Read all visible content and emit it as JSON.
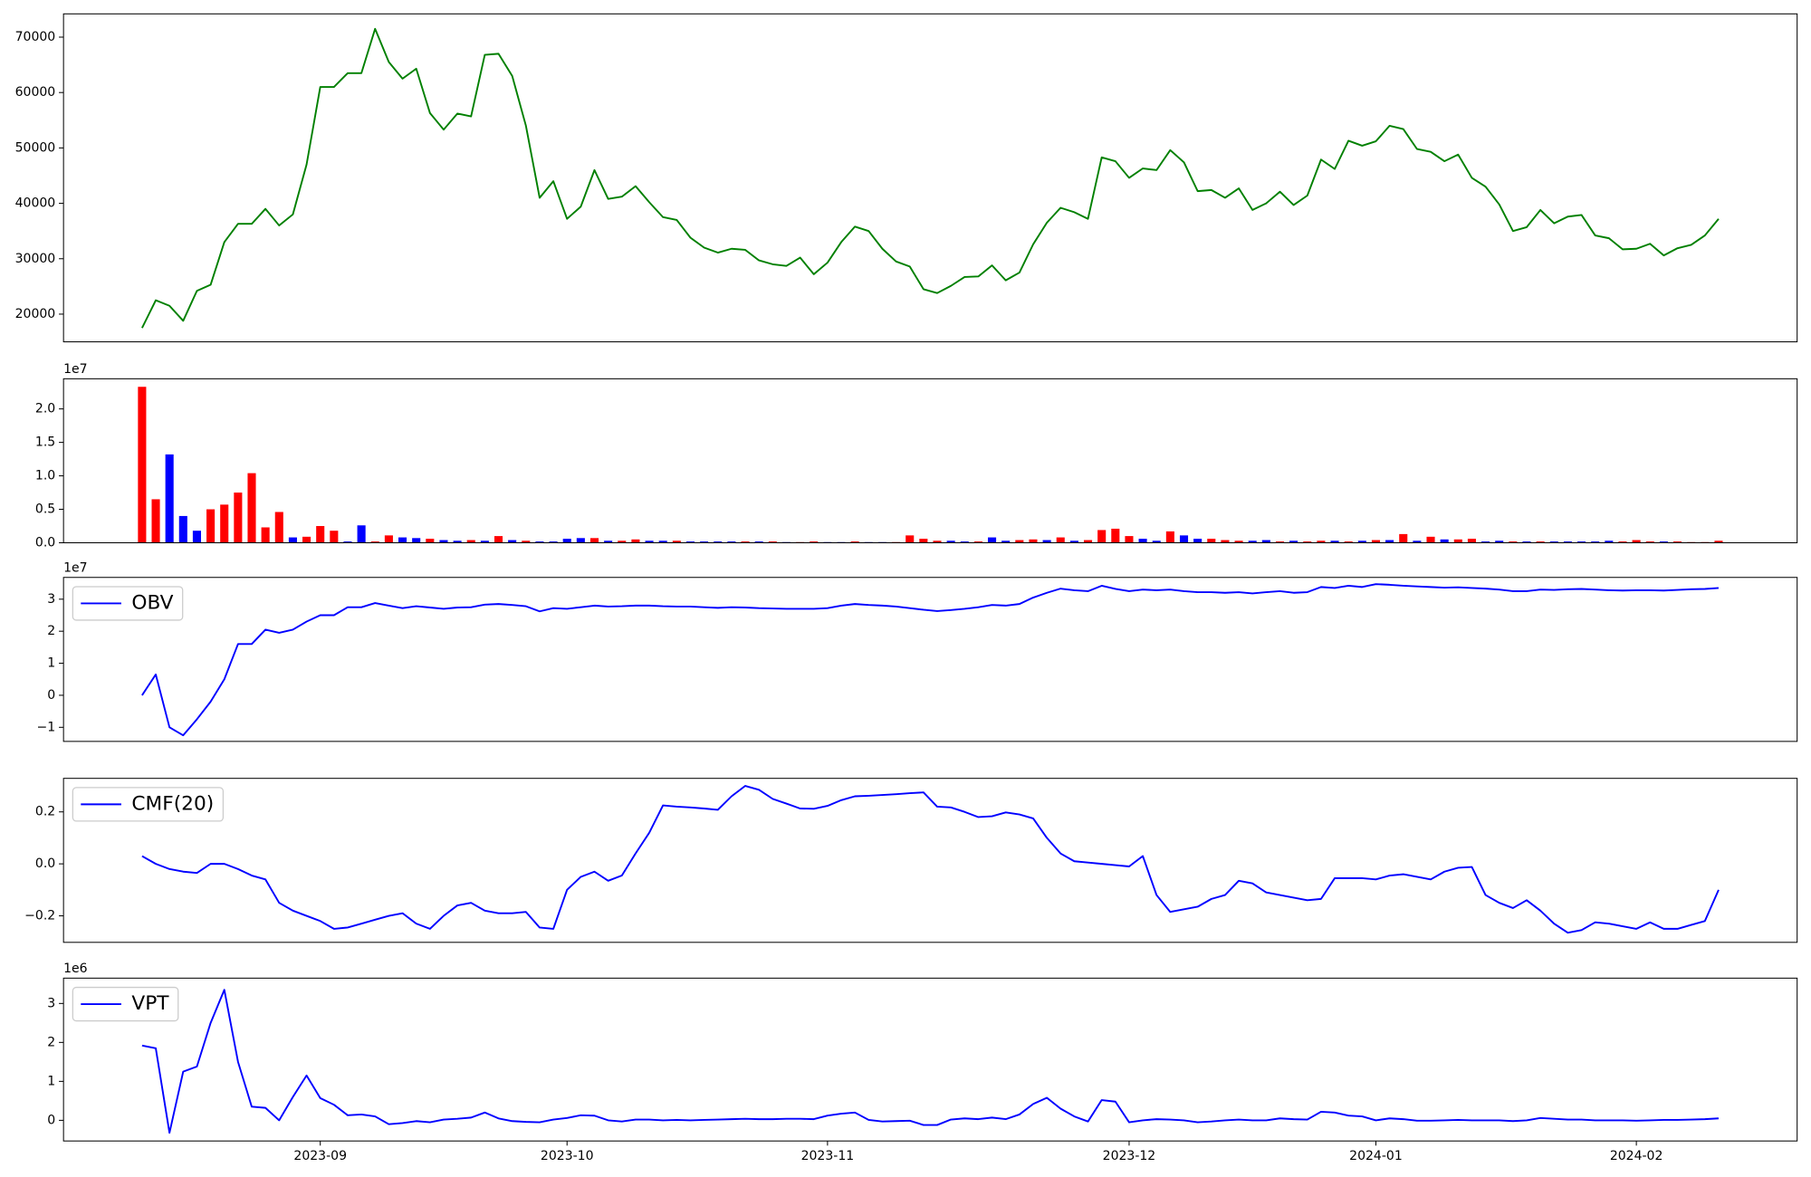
{
  "chart_data": [
    {
      "type": "line",
      "series": [
        {
          "color": "green",
          "values": [
            17500,
            22500,
            21500,
            18800,
            24200,
            25300,
            33000,
            36300,
            36300,
            39000,
            36000,
            38000,
            47000,
            61000,
            61000,
            63500,
            63500,
            71500,
            65500,
            62500,
            64300,
            56300,
            53300,
            56200,
            55700,
            66800,
            67000,
            63000,
            54000,
            41000,
            44000,
            37200,
            39400,
            46000,
            40800,
            41200,
            43100,
            40200,
            37500,
            37000,
            33800,
            32000,
            31100,
            31800,
            31600,
            29700,
            29000,
            28700,
            30200,
            27200,
            29300,
            33000,
            35800,
            35000,
            31800,
            29500,
            28600,
            24500,
            23800,
            25100,
            26700,
            26800,
            28800,
            26100,
            27500,
            32600,
            36500,
            39200,
            38400,
            37200,
            48300,
            47600,
            44600,
            46300,
            46000,
            49600,
            47400,
            42200,
            42400,
            41000,
            42700,
            38800,
            40000,
            42100,
            39700,
            41400,
            47900,
            46200,
            51300,
            50400,
            51200,
            54000,
            53400,
            49800,
            49300,
            47600,
            48800,
            44600,
            43000,
            39800,
            35000,
            35700,
            38800,
            36400,
            37600,
            37900,
            34200,
            33700,
            31700,
            31800,
            32700,
            30600,
            31900,
            32500,
            34200,
            37200
          ]
        }
      ],
      "ylim": [
        15000,
        74200
      ],
      "yticks": [
        20000,
        30000,
        40000,
        50000,
        60000,
        70000
      ]
    },
    {
      "type": "bar",
      "offset_label": "1e7",
      "values": [
        2.33,
        0.65,
        1.32,
        0.4,
        0.18,
        0.5,
        0.57,
        0.75,
        1.04,
        0.23,
        0.46,
        0.08,
        0.09,
        0.25,
        0.18,
        0.02,
        0.26,
        0.02,
        0.11,
        0.08,
        0.07,
        0.06,
        0.04,
        0.03,
        0.04,
        0.03,
        0.1,
        0.04,
        0.03,
        0.02,
        0.02,
        0.06,
        0.07,
        0.07,
        0.03,
        0.03,
        0.05,
        0.03,
        0.03,
        0.03,
        0.02,
        0.02,
        0.02,
        0.02,
        0.02,
        0.02,
        0.02,
        0.01,
        0.01,
        0.02,
        0.01,
        0.01,
        0.02,
        0.01,
        0.01,
        0.01,
        0.11,
        0.06,
        0.03,
        0.03,
        0.02,
        0.02,
        0.08,
        0.03,
        0.04,
        0.05,
        0.04,
        0.08,
        0.03,
        0.04,
        0.19,
        0.21,
        0.1,
        0.06,
        0.03,
        0.17,
        0.11,
        0.06,
        0.06,
        0.04,
        0.03,
        0.03,
        0.04,
        0.02,
        0.03,
        0.02,
        0.03,
        0.03,
        0.02,
        0.03,
        0.04,
        0.04,
        0.13,
        0.03,
        0.09,
        0.05,
        0.05,
        0.06,
        0.02,
        0.03,
        0.02,
        0.02,
        0.02,
        0.02,
        0.02,
        0.02,
        0.02,
        0.03,
        0.02,
        0.04,
        0.02,
        0.02,
        0.02,
        0.01,
        0.01,
        0.03
      ],
      "colors": [
        "red",
        "red",
        "blue",
        "blue",
        "blue",
        "red",
        "red",
        "red",
        "red",
        "red",
        "red",
        "blue",
        "red",
        "red",
        "red",
        "blue",
        "blue",
        "red",
        "red",
        "blue",
        "blue",
        "red",
        "blue",
        "blue",
        "red",
        "blue",
        "red",
        "blue",
        "red",
        "blue",
        "blue",
        "blue",
        "blue",
        "red",
        "blue",
        "red",
        "red",
        "blue",
        "blue",
        "red",
        "blue",
        "blue",
        "blue",
        "blue",
        "red",
        "blue",
        "red",
        "blue",
        "red",
        "red",
        "blue",
        "blue",
        "red",
        "blue",
        "blue",
        "red",
        "red",
        "red",
        "red",
        "blue",
        "blue",
        "red",
        "blue",
        "blue",
        "red",
        "red",
        "blue",
        "red",
        "blue",
        "red",
        "red",
        "red",
        "red",
        "blue",
        "blue",
        "red",
        "blue",
        "blue",
        "red",
        "red",
        "red",
        "blue",
        "blue",
        "red",
        "blue",
        "red",
        "red",
        "blue",
        "red",
        "blue",
        "red",
        "blue",
        "red",
        "blue",
        "red",
        "blue",
        "red",
        "red",
        "blue",
        "blue",
        "red",
        "blue",
        "red",
        "blue",
        "blue",
        "blue",
        "blue",
        "blue",
        "red",
        "red",
        "red",
        "blue",
        "red",
        "red",
        "red",
        "red"
      ],
      "ylim": [
        0,
        2.45
      ],
      "yticks": [
        {
          "value": 0,
          "label": "0.0"
        },
        {
          "value": 0.5,
          "label": "0.5"
        },
        {
          "value": 1,
          "label": "1.0"
        },
        {
          "value": 1.5,
          "label": "1.5"
        },
        {
          "value": 2,
          "label": "2.0"
        }
      ]
    },
    {
      "type": "line",
      "offset_label": "1e7",
      "legend": "upper left",
      "series": [
        {
          "name": "OBV",
          "color": "blue",
          "values": [
            0,
            0.65,
            -1.0,
            -1.25,
            -0.75,
            -0.2,
            0.5,
            1.6,
            1.6,
            2.05,
            1.95,
            2.05,
            2.3,
            2.5,
            2.5,
            2.75,
            2.75,
            2.88,
            2.8,
            2.72,
            2.78,
            2.74,
            2.7,
            2.74,
            2.75,
            2.83,
            2.85,
            2.82,
            2.78,
            2.62,
            2.72,
            2.7,
            2.75,
            2.8,
            2.77,
            2.78,
            2.8,
            2.8,
            2.78,
            2.77,
            2.77,
            2.75,
            2.73,
            2.75,
            2.74,
            2.72,
            2.71,
            2.7,
            2.7,
            2.7,
            2.72,
            2.8,
            2.85,
            2.82,
            2.8,
            2.77,
            2.72,
            2.67,
            2.63,
            2.66,
            2.7,
            2.75,
            2.82,
            2.8,
            2.85,
            3.05,
            3.2,
            3.33,
            3.28,
            3.25,
            3.42,
            3.32,
            3.25,
            3.3,
            3.28,
            3.3,
            3.25,
            3.22,
            3.22,
            3.2,
            3.22,
            3.18,
            3.22,
            3.25,
            3.2,
            3.22,
            3.38,
            3.35,
            3.42,
            3.38,
            3.47,
            3.45,
            3.42,
            3.4,
            3.38,
            3.36,
            3.37,
            3.35,
            3.33,
            3.3,
            3.25,
            3.25,
            3.3,
            3.29,
            3.31,
            3.32,
            3.3,
            3.28,
            3.27,
            3.28,
            3.28,
            3.27,
            3.29,
            3.31,
            3.32,
            3.35
          ]
        }
      ],
      "ylim": [
        -1.44,
        3.68
      ],
      "yticks": [
        {
          "value": -1,
          "label": "−1"
        },
        0,
        1,
        2,
        3
      ]
    },
    {
      "type": "line",
      "legend": "upper left",
      "series": [
        {
          "name": "CMF(20)",
          "color": "blue",
          "values": [
            0.03,
            0.0,
            -0.02,
            -0.03,
            -0.035,
            0.0,
            0.0,
            -0.02,
            -0.045,
            -0.06,
            -0.15,
            -0.18,
            -0.2,
            -0.22,
            -0.25,
            -0.245,
            -0.23,
            -0.215,
            -0.2,
            -0.19,
            -0.23,
            -0.25,
            -0.2,
            -0.16,
            -0.15,
            -0.18,
            -0.19,
            -0.19,
            -0.185,
            -0.245,
            -0.25,
            -0.1,
            -0.05,
            -0.03,
            -0.065,
            -0.045,
            0.04,
            0.12,
            0.225,
            0.22,
            0.217,
            0.213,
            0.208,
            0.26,
            0.3,
            0.285,
            0.25,
            0.232,
            0.213,
            0.212,
            0.223,
            0.245,
            0.26,
            0.262,
            0.265,
            0.268,
            0.272,
            0.275,
            0.22,
            0.217,
            0.2,
            0.18,
            0.183,
            0.198,
            0.19,
            0.175,
            0.1,
            0.04,
            0.01,
            0.005,
            0.0,
            -0.005,
            -0.01,
            0.03,
            -0.12,
            -0.185,
            -0.175,
            -0.165,
            -0.135,
            -0.12,
            -0.065,
            -0.075,
            -0.11,
            -0.12,
            -0.13,
            -0.14,
            -0.135,
            -0.055,
            -0.055,
            -0.055,
            -0.06,
            -0.045,
            -0.04,
            -0.05,
            -0.06,
            -0.03,
            -0.015,
            -0.012,
            -0.12,
            -0.15,
            -0.17,
            -0.14,
            -0.18,
            -0.23,
            -0.265,
            -0.255,
            -0.225,
            -0.23,
            -0.24,
            -0.25,
            -0.225,
            -0.25,
            -0.25,
            -0.235,
            -0.22,
            -0.1
          ]
        }
      ],
      "ylim": [
        -0.302,
        0.329
      ],
      "yticks": [
        {
          "value": -0.2,
          "label": "−0.2"
        },
        {
          "value": 0,
          "label": "0.0"
        },
        {
          "value": 0.2,
          "label": "0.2"
        }
      ]
    },
    {
      "type": "line",
      "offset_label": "1e6",
      "legend": "upper left",
      "categories": [
        null,
        null,
        null,
        null,
        null,
        null,
        null,
        null,
        null,
        null,
        null,
        null,
        null,
        "2023-09",
        null,
        null,
        null,
        null,
        null,
        null,
        null,
        null,
        null,
        null,
        null,
        null,
        null,
        null,
        null,
        null,
        null,
        "2023-10",
        null,
        null,
        null,
        null,
        null,
        null,
        null,
        null,
        null,
        null,
        null,
        null,
        null,
        null,
        null,
        null,
        null,
        null,
        "2023-11",
        null,
        null,
        null,
        null,
        null,
        null,
        null,
        null,
        null,
        null,
        null,
        null,
        null,
        null,
        null,
        null,
        null,
        null,
        null,
        null,
        null,
        "2023-12",
        null,
        null,
        null,
        null,
        null,
        null,
        null,
        null,
        null,
        null,
        null,
        null,
        null,
        null,
        null,
        null,
        null,
        "2024-01",
        null,
        null,
        null,
        null,
        null,
        null,
        null,
        null,
        null,
        null,
        null,
        null,
        null,
        null,
        null,
        null,
        null,
        null,
        "2024-02",
        null,
        null,
        null,
        null,
        null,
        null
      ],
      "series": [
        {
          "name": "VPT",
          "color": "blue",
          "values": [
            1.92,
            1.85,
            -0.32,
            1.25,
            1.38,
            2.5,
            3.35,
            1.5,
            0.35,
            0.32,
            0.0,
            0.6,
            1.15,
            0.57,
            0.4,
            0.13,
            0.15,
            0.1,
            -0.1,
            -0.07,
            -0.02,
            -0.05,
            0.02,
            0.04,
            0.07,
            0.2,
            0.05,
            -0.02,
            -0.04,
            -0.05,
            0.02,
            0.06,
            0.13,
            0.12,
            0.0,
            -0.03,
            0.02,
            0.02,
            0.0,
            0.01,
            0.0,
            0.01,
            0.02,
            0.03,
            0.04,
            0.03,
            0.03,
            0.04,
            0.04,
            0.03,
            0.12,
            0.17,
            0.2,
            0.01,
            -0.03,
            -0.02,
            -0.01,
            -0.12,
            -0.12,
            0.02,
            0.05,
            0.03,
            0.07,
            0.03,
            0.15,
            0.42,
            0.58,
            0.3,
            0.1,
            -0.03,
            0.52,
            0.48,
            -0.05,
            0.0,
            0.03,
            0.02,
            0.0,
            -0.05,
            -0.03,
            0.0,
            0.02,
            0.0,
            0.0,
            0.05,
            0.03,
            0.02,
            0.22,
            0.2,
            0.12,
            0.1,
            0.0,
            0.05,
            0.03,
            -0.01,
            -0.01,
            0.0,
            0.01,
            0.0,
            0.0,
            0.0,
            -0.02,
            0.0,
            0.06,
            0.04,
            0.02,
            0.02,
            0.0,
            0.0,
            0.0,
            -0.01,
            0.0,
            0.01,
            0.01,
            0.02,
            0.03,
            0.05
          ]
        }
      ],
      "ylim": [
        -0.53,
        3.65
      ],
      "yticks": [
        0,
        1,
        2,
        3
      ]
    }
  ]
}
